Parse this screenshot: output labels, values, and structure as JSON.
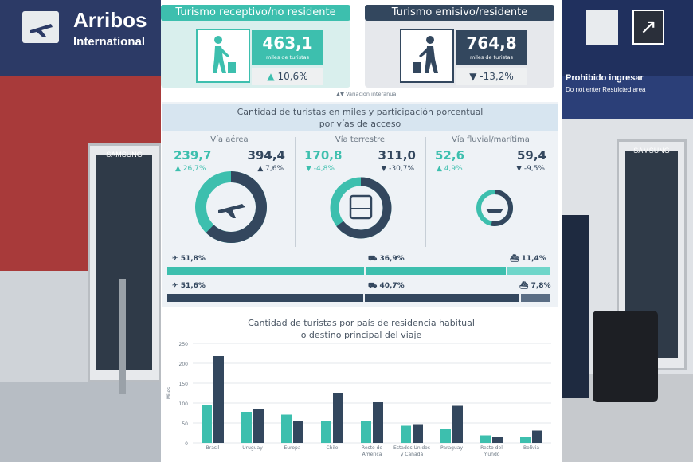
{
  "background": {
    "sign_arribos": "Arribos",
    "sign_international": "International",
    "sign_prohibido": "Prohibido ingresar",
    "sign_no_enter": "Do not enter Restricted area",
    "kiosk_brand": "SAMSUNG"
  },
  "receptivo": {
    "title": "Turismo receptivo/no residente",
    "value": "463,1",
    "unit": "miles de turistas",
    "variation": "10,6%"
  },
  "emisivo": {
    "title": "Turismo emisivo/residente",
    "value": "764,8",
    "unit": "miles de turistas",
    "variation": "-13,2%"
  },
  "variation_note": "Variación interanual",
  "access": {
    "title_line1": "Cantidad de turistas en miles y participación porcentual",
    "title_line2": "por vías de acceso",
    "aerea": {
      "label": "Vía aérea",
      "recv_value": "239,7",
      "recv_var": "26,7%",
      "emi_value": "394,4",
      "emi_var": "7,6%"
    },
    "terrestre": {
      "label": "Vía terrestre",
      "recv_value": "170,8",
      "recv_var": "-4,8%",
      "emi_value": "311,0",
      "emi_var": "-30,7%"
    },
    "fluvial": {
      "label": "Vía fluvial/marítima",
      "recv_value": "52,6",
      "recv_var": "4,9%",
      "emi_value": "59,4",
      "emi_var": "-9,5%"
    },
    "recv_shares": {
      "aerea": "51,8%",
      "terrestre": "36,9%",
      "fluvial": "11,4%"
    },
    "emi_shares": {
      "aerea": "51,6%",
      "terrestre": "40,7%",
      "fluvial": "7,8%"
    },
    "recv_share_values": [
      51.8,
      36.9,
      11.4
    ],
    "emi_share_values": [
      51.6,
      40.7,
      7.8
    ]
  },
  "colors": {
    "receptivo": "#3dbfae",
    "emisivo": "#33475e"
  },
  "country_chart_title_line1": "Cantidad de turistas por país de residencia habitual",
  "country_chart_title_line2": "o destino principal del viaje",
  "chart_data": {
    "type": "bar",
    "categories": [
      "Brasil",
      "Uruguay",
      "Europa",
      "Chile",
      "Resto de América",
      "Estados Unidos y Canadá",
      "Paraguay",
      "Resto del mundo",
      "Bolivia"
    ],
    "category_lines": [
      [
        "Brasil"
      ],
      [
        "Uruguay"
      ],
      [
        "Europa"
      ],
      [
        "Chile"
      ],
      [
        "Resto de",
        "América"
      ],
      [
        "Estados Unidos",
        "y Canadá"
      ],
      [
        "Paraguay"
      ],
      [
        "Resto del",
        "mundo"
      ],
      [
        "Bolivia"
      ]
    ],
    "series": [
      {
        "values": [
          96,
          78,
          71,
          56,
          56,
          43,
          35,
          19,
          14
        ]
      },
      {
        "values": [
          218,
          84,
          54,
          124,
          102,
          47,
          93,
          15,
          31
        ]
      }
    ],
    "ylabel": "Miles",
    "ylim": [
      0,
      250
    ],
    "yticks": [
      0,
      50,
      100,
      150,
      200,
      250
    ],
    "grid": true
  }
}
